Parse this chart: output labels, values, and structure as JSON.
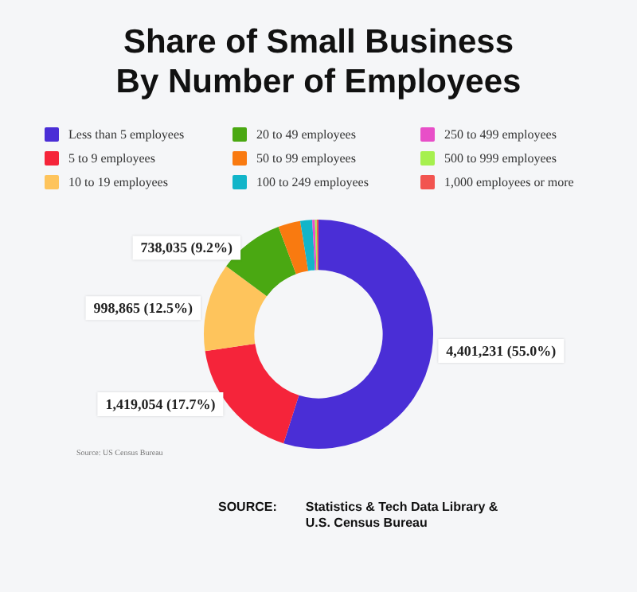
{
  "chart_data": {
    "type": "donut",
    "title": "Share of Small Business By Number of Employees",
    "categories": [
      "Less than 5 employees",
      "5 to 9 employees",
      "10 to 19 employees",
      "20 to 49 employees",
      "50 to 99 employees",
      "100 to 249 employees",
      "250 to 499 employees",
      "500 to 999 employees",
      "1,000 employees or more"
    ],
    "values": [
      4401231,
      1419054,
      998865,
      738035,
      250000,
      135000,
      30000,
      20000,
      20000
    ],
    "value_labels": [
      "4,401,231 (55.0%)",
      "1,419,054 (17.7%)",
      "998,865 (12.5%)",
      "738,035 (9.2%)",
      null,
      null,
      null,
      null,
      null
    ],
    "colors": [
      "#4a2ed6",
      "#f5243a",
      "#fec45c",
      "#4aa812",
      "#f97a10",
      "#12b5c9",
      "#e84fc8",
      "#a6f04e",
      "#f25450"
    ],
    "legend": "top",
    "annotations": [
      "Source: US Census Bureau",
      "SOURCE:",
      "Statistics & Tech Data Library & U.S. Census Bureau"
    ]
  }
}
